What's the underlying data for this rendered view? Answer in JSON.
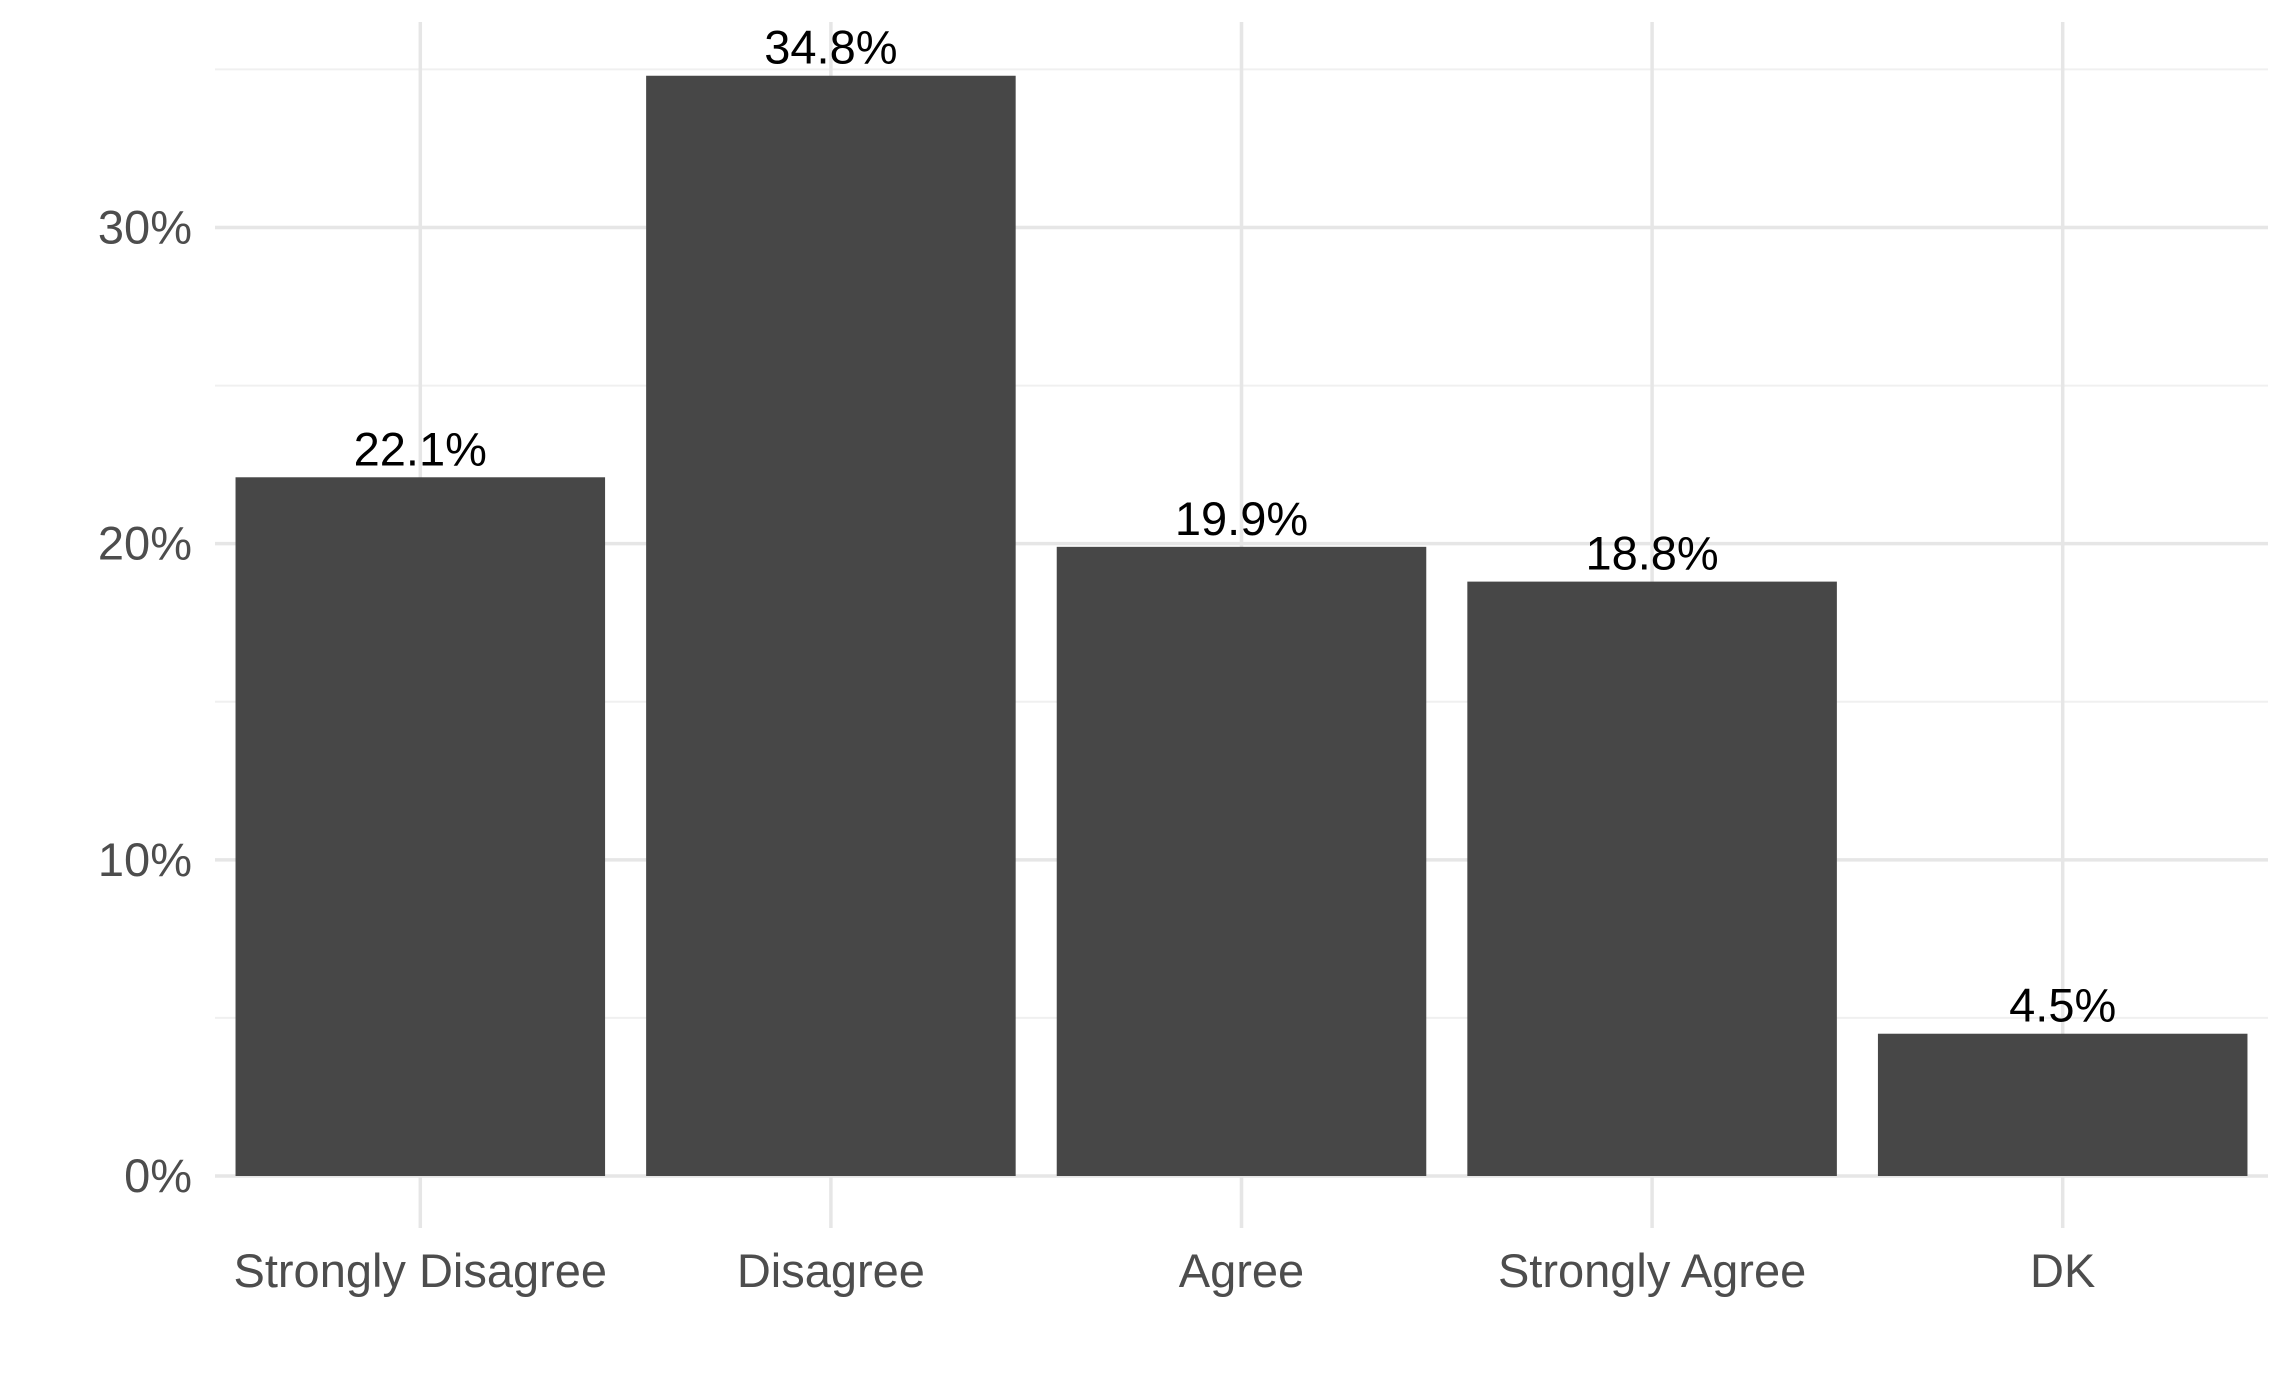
{
  "chart_data": {
    "type": "bar",
    "categories": [
      "Strongly Disagree",
      "Disagree",
      "Agree",
      "Strongly Agree",
      "DK"
    ],
    "values": [
      22.1,
      34.8,
      19.9,
      18.8,
      4.5
    ],
    "value_labels": [
      "22.1%",
      "34.8%",
      "19.9%",
      "18.8%",
      "4.5%"
    ],
    "title": "",
    "xlabel": "",
    "ylabel": "",
    "ylim": [
      0,
      36.5
    ],
    "y_ticks": [
      0,
      10,
      20,
      30
    ],
    "y_tick_labels": [
      "0%",
      "10%",
      "20%",
      "30%"
    ],
    "grid": true,
    "legend": "none",
    "colors": {
      "bar": "#474747",
      "grid_major": "#e6e6e6",
      "grid_minor": "#f0f0f0",
      "tick_text": "#4d4d4d",
      "label_text": "#000000"
    }
  }
}
